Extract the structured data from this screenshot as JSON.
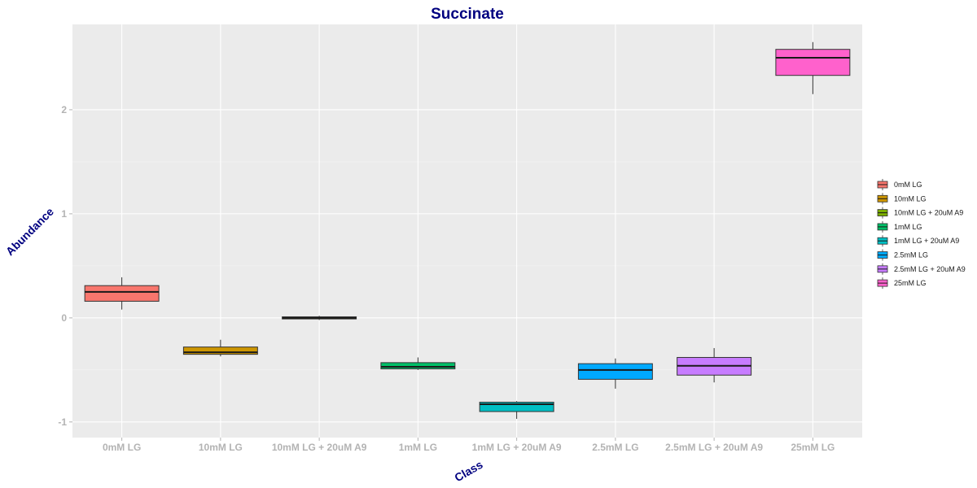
{
  "chart_data": {
    "type": "boxplot",
    "title": "Succinate",
    "xlabel": "Class",
    "ylabel": "Abundance",
    "categories": [
      "0mM LG",
      "10mM LG",
      "10mM LG + 20uM A9",
      "1mM LG",
      "1mM LG + 20uM A9",
      "2.5mM LG",
      "2.5mM LG + 20uM A9",
      "25mM LG"
    ],
    "yticks": [
      -1,
      0,
      1,
      2
    ],
    "ylim": [
      -1.15,
      2.82
    ],
    "grid": true,
    "legend_position": "right",
    "series": [
      {
        "name": "0mM LG",
        "color": "#F8766D",
        "whisker_low": 0.08,
        "q1": 0.16,
        "median": 0.25,
        "q3": 0.31,
        "whisker_high": 0.39
      },
      {
        "name": "10mM LG",
        "color": "#CD9600",
        "whisker_low": -0.37,
        "q1": -0.35,
        "median": -0.33,
        "q3": -0.28,
        "whisker_high": -0.21
      },
      {
        "name": "10mM LG + 20uM A9",
        "color": "#7CAE00",
        "whisker_low": -0.02,
        "q1": -0.01,
        "median": 0.0,
        "q3": 0.01,
        "whisker_high": 0.02
      },
      {
        "name": "1mM LG",
        "color": "#00BE67",
        "whisker_low": -0.5,
        "q1": -0.49,
        "median": -0.47,
        "q3": -0.43,
        "whisker_high": -0.38
      },
      {
        "name": "1mM LG + 20uM A9",
        "color": "#00BFC4",
        "whisker_low": -0.97,
        "q1": -0.9,
        "median": -0.83,
        "q3": -0.81,
        "whisker_high": -0.8
      },
      {
        "name": "2.5mM LG",
        "color": "#00A9FF",
        "whisker_low": -0.68,
        "q1": -0.59,
        "median": -0.5,
        "q3": -0.44,
        "whisker_high": -0.39
      },
      {
        "name": "2.5mM LG + 20uM A9",
        "color": "#C77CFF",
        "whisker_low": -0.62,
        "q1": -0.55,
        "median": -0.46,
        "q3": -0.38,
        "whisker_high": -0.29
      },
      {
        "name": "25mM LG",
        "color": "#FF61CC",
        "whisker_low": 2.15,
        "q1": 2.33,
        "median": 2.5,
        "q3": 2.58,
        "whisker_high": 2.65
      }
    ]
  }
}
